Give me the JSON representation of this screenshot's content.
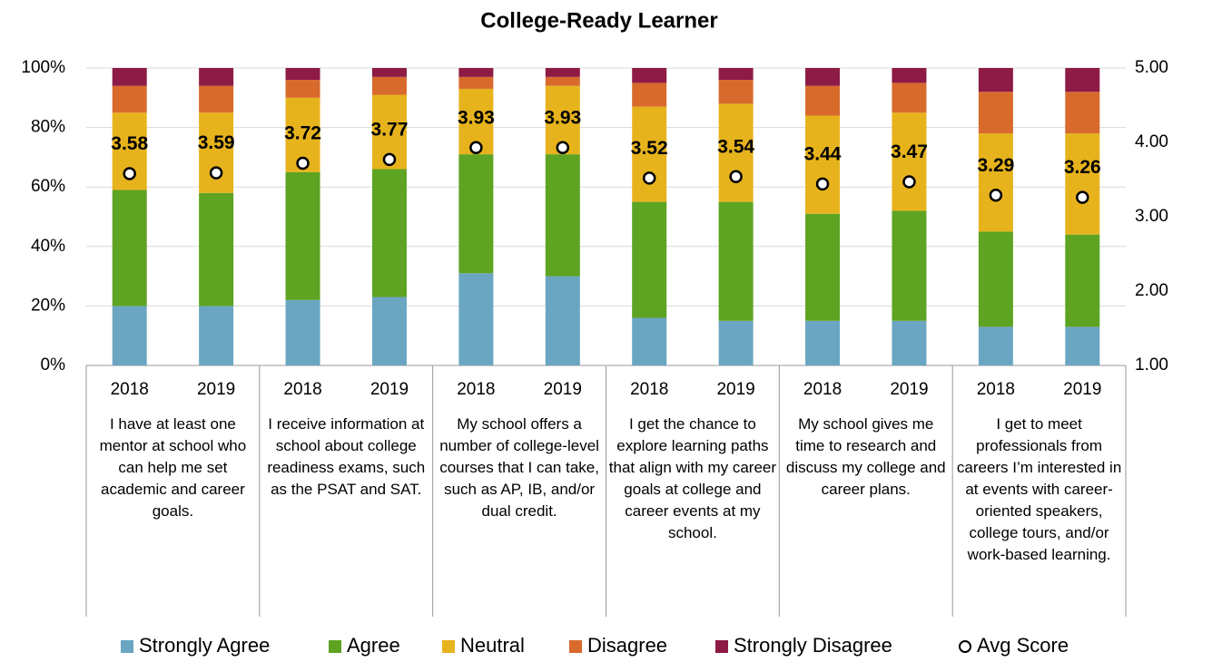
{
  "chart_data": {
    "type": "bar",
    "stacked": true,
    "title": "College-Ready Learner",
    "categories": [
      "2018",
      "2019",
      "2018",
      "2019",
      "2018",
      "2019",
      "2018",
      "2019",
      "2018",
      "2019",
      "2018",
      "2019"
    ],
    "groups": [
      "I have at least one mentor at school who can help me set academic and career goals.",
      "I receive information at school about college readiness exams, such as the PSAT and SAT.",
      "My school offers a number of college-level courses that I can take, such as AP, IB, and/or dual credit.",
      "I get the chance to explore learning paths that align with my career goals at college and career events at my school.",
      "My school gives me time to research and discuss my college and career plans.",
      "I get to meet professionals from careers I’m interested in at events with career-oriented speakers, college tours, and/or work-based learning."
    ],
    "series": [
      {
        "name": "Strongly Agree",
        "color": "#6aa6c1",
        "values": [
          20,
          20,
          22,
          23,
          31,
          30,
          16,
          15,
          15,
          15,
          13,
          13
        ]
      },
      {
        "name": "Agree",
        "color": "#5ea321",
        "values": [
          39,
          38,
          43,
          43,
          40,
          41,
          39,
          40,
          36,
          37,
          32,
          31
        ]
      },
      {
        "name": "Neutral",
        "color": "#e7b31d",
        "values": [
          26,
          27,
          25,
          25,
          22,
          23,
          32,
          33,
          33,
          33,
          33,
          34
        ]
      },
      {
        "name": "Disagree",
        "color": "#d86a2c",
        "values": [
          9,
          9,
          6,
          6,
          4,
          3,
          8,
          8,
          10,
          10,
          14,
          14
        ]
      },
      {
        "name": "Strongly Disagree",
        "color": "#8e1b46",
        "values": [
          6,
          6,
          4,
          3,
          3,
          3,
          5,
          4,
          6,
          5,
          8,
          8
        ]
      },
      {
        "name": "Avg Score",
        "type": "scatter",
        "axis": "y2",
        "color": "#ffffff",
        "values": [
          3.58,
          3.59,
          3.72,
          3.77,
          3.93,
          3.93,
          3.52,
          3.54,
          3.44,
          3.47,
          3.29,
          3.26
        ]
      }
    ],
    "ylim": [
      0,
      100
    ],
    "yticks": [
      {
        "value": 0,
        "label": "0%"
      },
      {
        "value": 20,
        "label": "20%"
      },
      {
        "value": 40,
        "label": "40%"
      },
      {
        "value": 60,
        "label": "60%"
      },
      {
        "value": 80,
        "label": "80%"
      },
      {
        "value": 100,
        "label": "100%"
      }
    ],
    "y2lim": [
      1,
      5
    ],
    "y2ticks": [
      {
        "value": 1,
        "label": "1.00"
      },
      {
        "value": 2,
        "label": "2.00"
      },
      {
        "value": 3,
        "label": "3.00"
      },
      {
        "value": 4,
        "label": "4.00"
      },
      {
        "value": 5,
        "label": "5.00"
      }
    ],
    "grid": true,
    "legend": "bottom"
  }
}
